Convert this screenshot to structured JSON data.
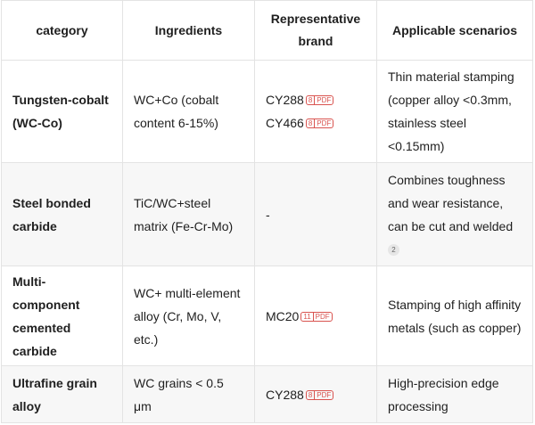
{
  "headers": [
    "category",
    "Ingredients",
    "Representative brand",
    "Applicable scenarios"
  ],
  "rows": [
    {
      "category": "Tungsten-cobalt (WC-Co)",
      "ingredients": "WC+Co (cobalt content 6-15%)",
      "brands": [
        {
          "name": "CY288",
          "ref": "8",
          "tag": "PDF"
        },
        {
          "name": "CY466",
          "ref": "8",
          "tag": "PDF"
        }
      ],
      "scenarios": "Thin material stamping (copper alloy <0.3mm, stainless steel <0.15mm)",
      "scenario_ref": ""
    },
    {
      "category": "Steel bonded carbide",
      "ingredients": "TiC/WC+steel matrix (Fe-Cr-Mo)",
      "brand_text": "-",
      "scenarios": "Combines toughness and wear resistance, can be cut and welded",
      "scenario_ref": "2"
    },
    {
      "category": "Multi-component cemented carbide",
      "ingredients": "WC+ multi-element alloy (Cr, Mo, V, etc.)",
      "brands": [
        {
          "name": "MC20",
          "ref": "11",
          "tag": "PDF"
        }
      ],
      "scenarios": "Stamping of high affinity metals (such as copper)",
      "scenario_ref": ""
    },
    {
      "category": "Ultrafine grain alloy",
      "ingredients": "WC grains < 0.5 μm",
      "brands": [
        {
          "name": "CY288",
          "ref": "8",
          "tag": "PDF"
        }
      ],
      "scenarios": "High-precision edge processing",
      "scenario_ref": ""
    }
  ]
}
